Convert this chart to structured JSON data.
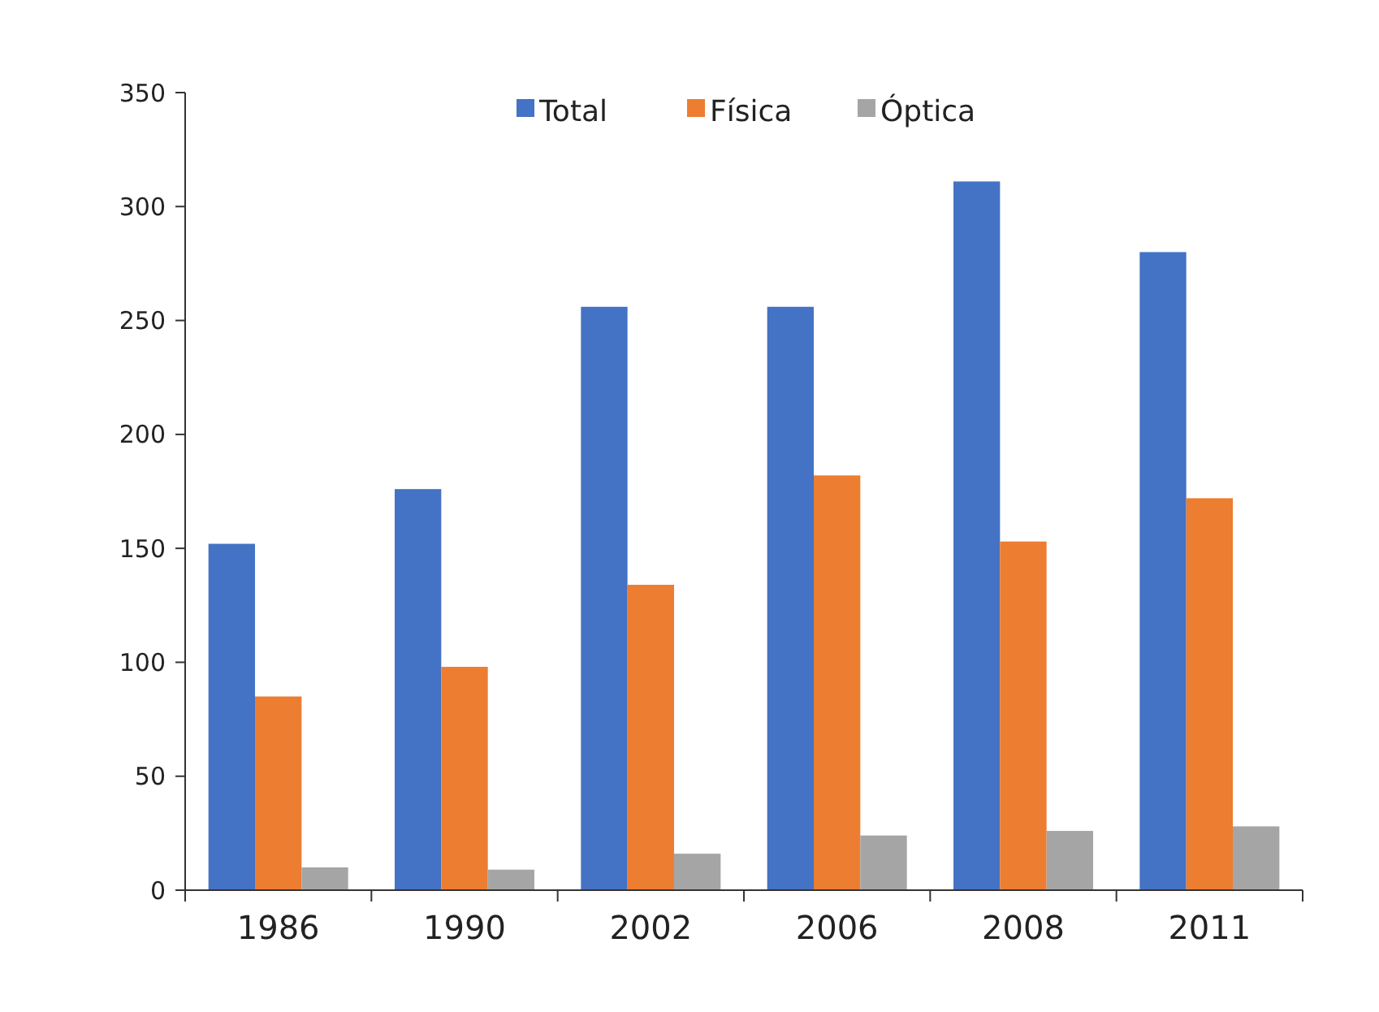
{
  "chart_data": {
    "type": "bar",
    "categories": [
      "1986",
      "1990",
      "2002",
      "2006",
      "2008",
      "2011"
    ],
    "series": [
      {
        "name": "Total",
        "color": "#4472c4",
        "values": [
          152,
          176,
          256,
          256,
          311,
          280
        ]
      },
      {
        "name": "Física",
        "color": "#ed7d31",
        "values": [
          85,
          98,
          134,
          182,
          153,
          172
        ]
      },
      {
        "name": "Óptica",
        "color": "#a5a5a5",
        "values": [
          10,
          9,
          16,
          24,
          26,
          28
        ]
      }
    ],
    "ylim": [
      0,
      350
    ],
    "yticks": [
      0,
      50,
      100,
      150,
      200,
      250,
      300,
      350
    ],
    "grid": false,
    "legend": "top"
  }
}
